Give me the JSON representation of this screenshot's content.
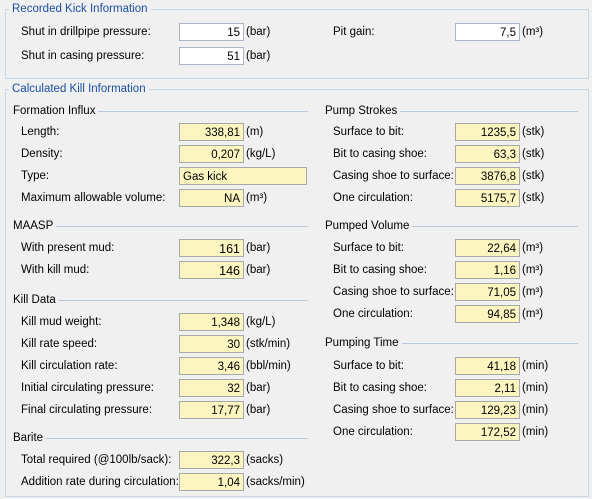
{
  "recorded": {
    "title": "Recorded Kick Information",
    "sidpp_label": "Shut in drillpipe pressure:",
    "sidpp_value": "15",
    "sidpp_unit": "(bar)",
    "sicp_label": "Shut in casing pressure:",
    "sicp_value": "51",
    "sicp_unit": "(bar)",
    "pit_label": "Pit gain:",
    "pit_value": "7,5",
    "pit_unit": "(m³)"
  },
  "calculated": {
    "title": "Calculated Kill Information",
    "influx": {
      "title": "Formation Influx",
      "length_label": "Length:",
      "length_value": "338,81",
      "length_unit": "(m)",
      "density_label": "Density:",
      "density_value": "0,207",
      "density_unit": "(kg/L)",
      "type_label": "Type:",
      "type_value": "Gas kick",
      "maxvol_label": "Maximum allowable volume:",
      "maxvol_value": "NA",
      "maxvol_unit": "(m³)"
    },
    "maasp": {
      "title": "MAASP",
      "present_label": "With present mud:",
      "present_value": "161",
      "present_unit": "(bar)",
      "kill_label": "With kill mud:",
      "kill_value": "146",
      "kill_unit": "(bar)"
    },
    "kill": {
      "title": "Kill Data",
      "weight_label": "Kill mud weight:",
      "weight_value": "1,348",
      "weight_unit": "(kg/L)",
      "speed_label": "Kill rate speed:",
      "speed_value": "30",
      "speed_unit": "(stk/min)",
      "rate_label": "Kill circulation rate:",
      "rate_value": "3,46",
      "rate_unit": "(bbl/min)",
      "icp_label": "Initial circulating pressure:",
      "icp_value": "32",
      "icp_unit": "(bar)",
      "fcp_label": "Final circulating pressure:",
      "fcp_value": "17,77",
      "fcp_unit": "(bar)"
    },
    "barite": {
      "title": "Barite",
      "total_label": "Total required (@100lb/sack):",
      "total_value": "322,3",
      "total_unit": "(sacks)",
      "rate_label": "Addition rate during circulation:",
      "rate_value": "1,04",
      "rate_unit": "(sacks/min)"
    },
    "strokes": {
      "title": "Pump Strokes",
      "r1_label": "Surface to bit:",
      "r1_value": "1235,5",
      "r1_unit": "(stk)",
      "r2_label": "Bit to casing shoe:",
      "r2_value": "63,3",
      "r2_unit": "(stk)",
      "r3_label": "Casing shoe to surface:",
      "r3_value": "3876,8",
      "r3_unit": "(stk)",
      "r4_label": "One circulation:",
      "r4_value": "5175,7",
      "r4_unit": "(stk)"
    },
    "volume": {
      "title": "Pumped Volume",
      "r1_label": "Surface to bit:",
      "r1_value": "22,64",
      "r1_unit": "(m³)",
      "r2_label": "Bit to casing shoe:",
      "r2_value": "1,16",
      "r2_unit": "(m³)",
      "r3_label": "Casing shoe to surface:",
      "r3_value": "71,05",
      "r3_unit": "(m³)",
      "r4_label": "One circulation:",
      "r4_value": "94,85",
      "r4_unit": "(m³)"
    },
    "time": {
      "title": "Pumping Time",
      "r1_label": "Surface to bit:",
      "r1_value": "41,18",
      "r1_unit": "(min)",
      "r2_label": "Bit to casing shoe:",
      "r2_value": "2,11",
      "r2_unit": "(min)",
      "r3_label": "Casing shoe to surface:",
      "r3_value": "129,23",
      "r3_unit": "(min)",
      "r4_label": "One circulation:",
      "r4_value": "172,52",
      "r4_unit": "(min)"
    }
  },
  "colors": {
    "section_title": "#1a4fa0",
    "field_yellow": "#fbf6c0",
    "field_white": "#ffffff",
    "background": "#f0f0f0"
  }
}
